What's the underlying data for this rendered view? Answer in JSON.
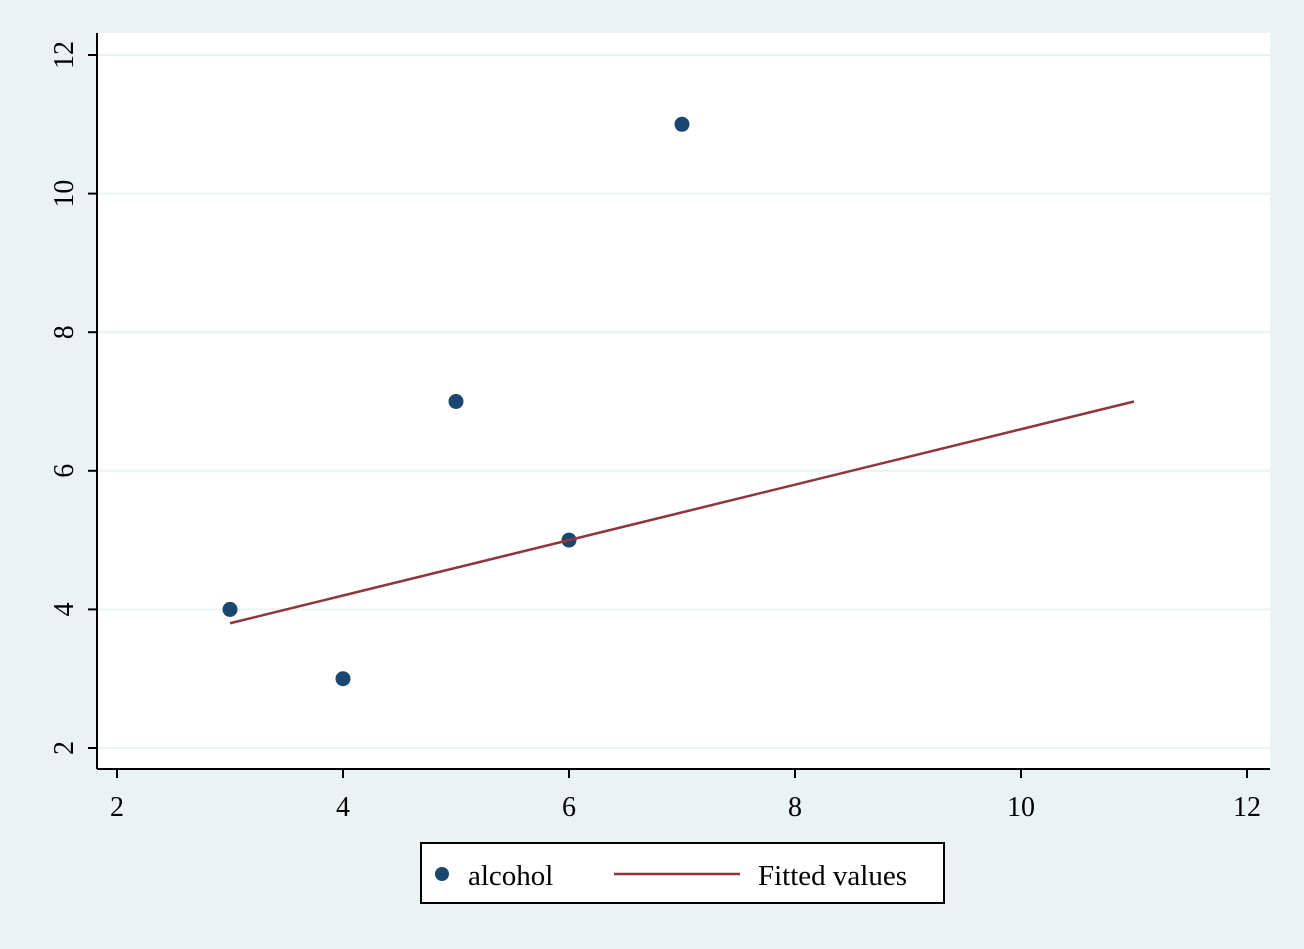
{
  "chart_data": {
    "type": "scatter",
    "title": "",
    "xlabel": "",
    "ylabel": "",
    "xlim": [
      2,
      12
    ],
    "ylim": [
      2,
      12
    ],
    "x_ticks": [
      2,
      4,
      6,
      8,
      10,
      12
    ],
    "y_ticks": [
      2,
      4,
      6,
      8,
      10,
      12
    ],
    "x_tick_labels": [
      "2",
      "4",
      "6",
      "8",
      "10",
      "12"
    ],
    "y_tick_labels": [
      "2",
      "4",
      "6",
      "8",
      "10",
      "12"
    ],
    "grid": true,
    "legend_position": "bottom-center",
    "series": [
      {
        "name": "alcohol",
        "type": "scatter",
        "color": "#1a476f",
        "points": [
          {
            "x": 3,
            "y": 4
          },
          {
            "x": 4,
            "y": 3
          },
          {
            "x": 5,
            "y": 7
          },
          {
            "x": 6,
            "y": 5
          },
          {
            "x": 7,
            "y": 11
          }
        ]
      },
      {
        "name": "Fitted values",
        "type": "line",
        "color": "#90353b",
        "points": [
          {
            "x": 3,
            "y": 3.8
          },
          {
            "x": 11,
            "y": 7.0
          }
        ]
      }
    ],
    "legend": {
      "entries": [
        "alcohol",
        "Fitted values"
      ]
    }
  },
  "colors": {
    "outer_background": "#eaf2f3",
    "plot_background": "#ffffff",
    "grid": "#eaf2f3",
    "scatter": "#1a476f",
    "fit_line": "#90353b"
  }
}
